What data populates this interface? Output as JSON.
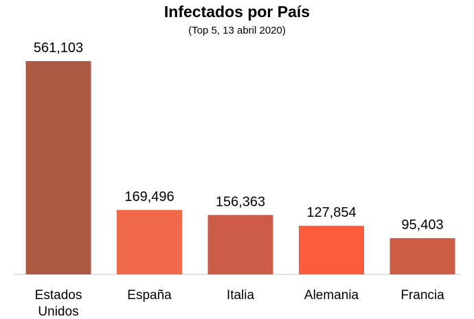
{
  "chart_data": {
    "type": "bar",
    "title": "Infectados por País",
    "subtitle": "(Top 5, 13 abril 2020)",
    "categories": [
      [
        "Estados",
        "Unidos"
      ],
      [
        "España"
      ],
      [
        "Italia"
      ],
      [
        "Alemania"
      ],
      [
        "Francia"
      ]
    ],
    "values": [
      561103,
      169496,
      156363,
      127854,
      95403
    ],
    "value_labels": [
      "561,103",
      "169,496",
      "156,363",
      "127,854",
      "95,403"
    ],
    "colors": [
      "#ad5a45",
      "#f0694a",
      "#cc5c47",
      "#fe5a3c",
      "#cd5d47"
    ],
    "ylim": [
      0,
      561103
    ],
    "grid": false,
    "legend": "none"
  }
}
